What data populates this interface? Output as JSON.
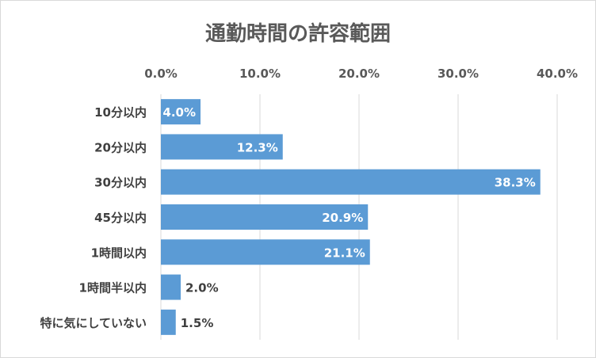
{
  "chart_data": {
    "type": "bar",
    "orientation": "horizontal",
    "title": "通勤時間の許容範囲",
    "xlabel": "",
    "ylabel": "",
    "categories": [
      "10分以内",
      "20分以内",
      "30分以内",
      "45分以内",
      "1時間以内",
      "1時間半以内",
      "特に気にしていない"
    ],
    "values": [
      4.0,
      12.3,
      38.3,
      20.9,
      21.1,
      2.0,
      1.5
    ],
    "value_labels": [
      "4.0%",
      "12.3%",
      "38.3%",
      "20.9%",
      "21.1%",
      "2.0%",
      "1.5%"
    ],
    "xlim": [
      0,
      40
    ],
    "x_ticks": [
      "0.0%",
      "10.0%",
      "20.0%",
      "30.0%",
      "40.0%"
    ],
    "x_axis_position": "top",
    "grid": true,
    "legend": "none",
    "bar_color": "#5b9bd5",
    "gridline_color": "#d9d9d9"
  }
}
